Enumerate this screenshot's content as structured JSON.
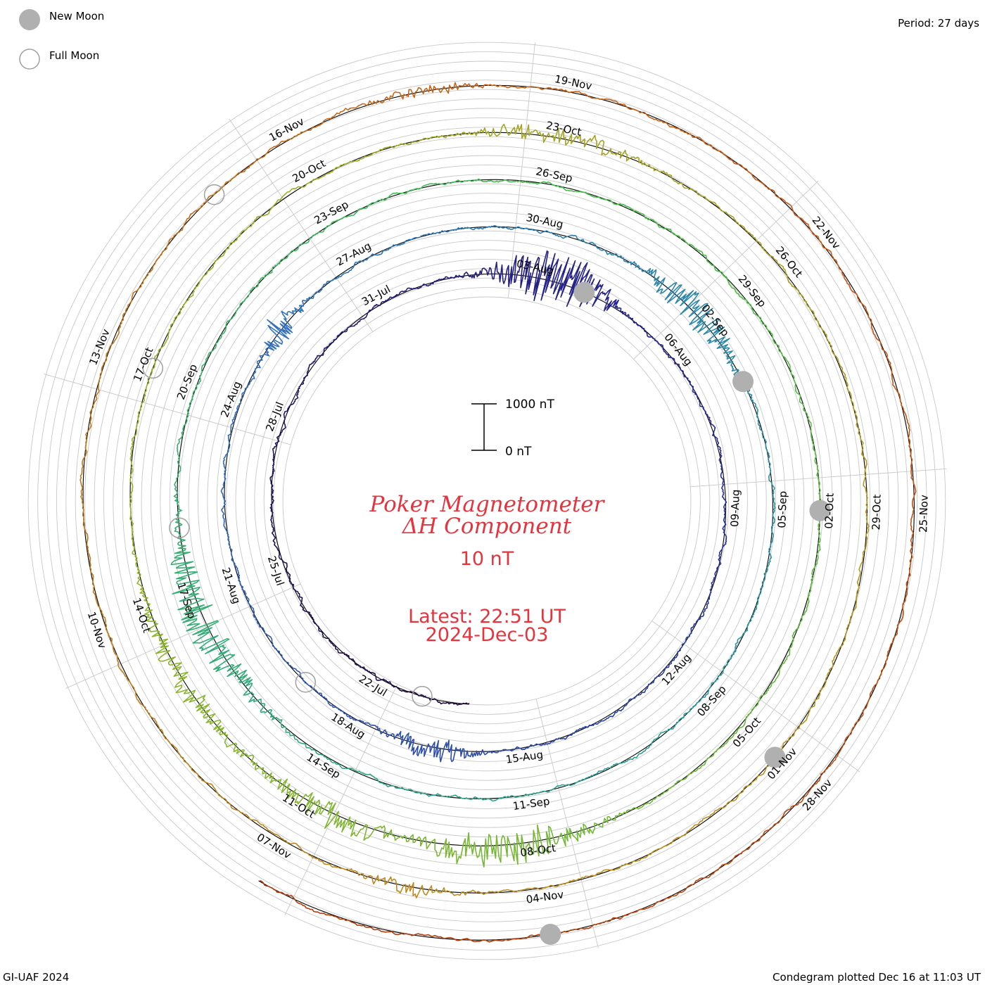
{
  "legend": {
    "new_moon_label": "New Moon",
    "full_moon_label": "Full Moon"
  },
  "period_label": "Period: 27 days",
  "footer": {
    "left": "GI-UAF 2024",
    "right": "Condegram plotted Dec 16 at 11:03 UT"
  },
  "center": {
    "title_line1": "Poker Magnetometer",
    "title_line2": "ΔH Component",
    "scale_caption": "10 nT",
    "latest_line1": "Latest: 22:51 UT",
    "latest_line2": "2024-Dec-03"
  },
  "scale_bar": {
    "top_label": "1000 nT",
    "bottom_label": "0 nT"
  },
  "colors": {
    "title": "#e8323c",
    "moon_fill": "#b0b0b0",
    "moon_stroke": "#a0a0a0",
    "grid": "#c8c8c8",
    "baseline": "#000000"
  },
  "chart_data": {
    "type": "line",
    "subtype": "condegram spiral",
    "title": "Poker Magnetometer",
    "subtitle": "ΔH Component",
    "period_days": 27,
    "scale_nT": 10,
    "scale_bar_nT": [
      0,
      1000
    ],
    "start_date": "2024-07-20",
    "end_date": "2024-12-03",
    "date_labels": [
      {
        "text": "22-Jul",
        "angle": 186
      },
      {
        "text": "25-Jul",
        "angle": 226
      },
      {
        "text": "28-Jul",
        "angle": 266
      },
      {
        "text": "31-Jul",
        "angle": 306
      },
      {
        "text": "03-Aug",
        "angle": 346
      },
      {
        "text": "06-Aug",
        "angle": 26
      },
      {
        "text": "09-Aug",
        "angle": 66
      },
      {
        "text": "12-Aug",
        "angle": 106
      },
      {
        "text": "15-Aug",
        "angle": 146
      },
      {
        "text": "18-Aug",
        "angle": 186
      },
      {
        "text": "21-Aug",
        "angle": 226
      },
      {
        "text": "24-Aug",
        "angle": 266
      },
      {
        "text": "27-Aug",
        "angle": 306
      },
      {
        "text": "30-Aug",
        "angle": 346
      },
      {
        "text": "02-Sep",
        "angle": 26
      },
      {
        "text": "05-Sep",
        "angle": 66
      },
      {
        "text": "08-Sep",
        "angle": 106
      },
      {
        "text": "11-Sep",
        "angle": 146
      },
      {
        "text": "14-Sep",
        "angle": 186
      },
      {
        "text": "17-Sep",
        "angle": 226
      },
      {
        "text": "20-Sep",
        "angle": 266
      },
      {
        "text": "23-Sep",
        "angle": 306
      },
      {
        "text": "26-Sep",
        "angle": 346
      },
      {
        "text": "29-Sep",
        "angle": 26
      },
      {
        "text": "02-Oct",
        "angle": 66
      },
      {
        "text": "05-Oct",
        "angle": 106
      },
      {
        "text": "08-Oct",
        "angle": 146
      },
      {
        "text": "11-Oct",
        "angle": 186
      },
      {
        "text": "14-Oct",
        "angle": 226
      },
      {
        "text": "17-Oct",
        "angle": 266
      },
      {
        "text": "20-Oct",
        "angle": 306
      },
      {
        "text": "23-Oct",
        "angle": 346
      },
      {
        "text": "26-Oct",
        "angle": 26
      },
      {
        "text": "29-Oct",
        "angle": 66
      },
      {
        "text": "01-Nov",
        "angle": 106
      },
      {
        "text": "04-Nov",
        "angle": 146
      },
      {
        "text": "07-Nov",
        "angle": 186
      },
      {
        "text": "10-Nov",
        "angle": 226
      },
      {
        "text": "13-Nov",
        "angle": 266
      },
      {
        "text": "16-Nov",
        "angle": 306
      },
      {
        "text": "19-Nov",
        "angle": 346
      },
      {
        "text": "22-Nov",
        "angle": 26
      },
      {
        "text": "25-Nov",
        "angle": 66
      },
      {
        "text": "28-Nov",
        "angle": 106
      }
    ],
    "new_moons": [
      "2024-08-04",
      "2024-09-03",
      "2024-10-02",
      "2024-11-01",
      "2024-12-01"
    ],
    "full_moons": [
      "2024-07-21",
      "2024-08-19",
      "2024-09-18",
      "2024-10-17",
      "2024-11-15"
    ]
  }
}
